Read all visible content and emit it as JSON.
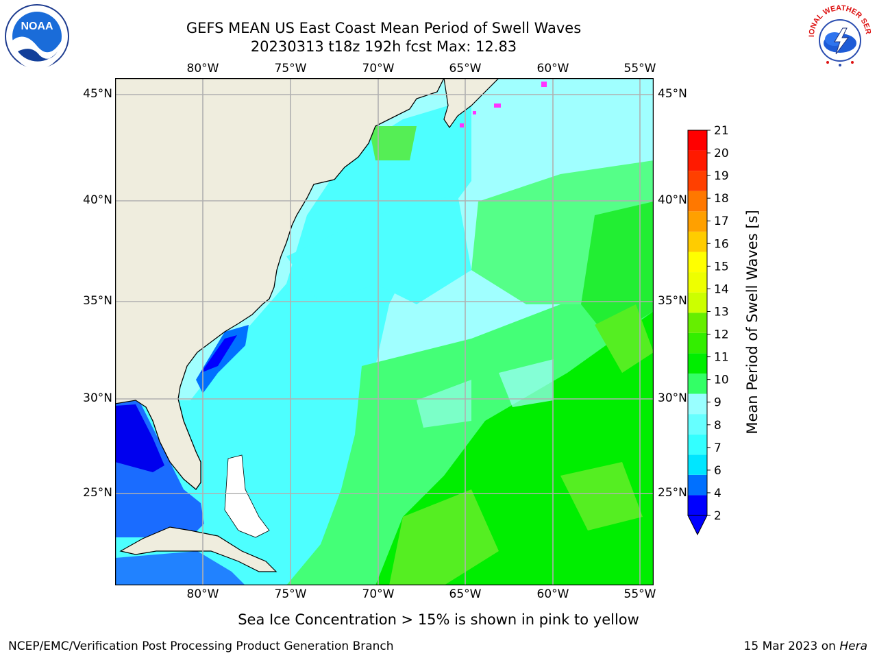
{
  "title": {
    "line1": "GEFS MEAN US East Coast Mean Period of Swell Waves",
    "line2": "20230313 t18z 192h fcst   Max: 12.83"
  },
  "map": {
    "lon_labels": [
      "80°W",
      "75°W",
      "70°W",
      "65°W",
      "60°W",
      "55°W"
    ],
    "lat_labels": [
      "45°N",
      "40°N",
      "35°N",
      "30°N",
      "25°N"
    ]
  },
  "colorbar": {
    "label": "Mean Period of Swell Waves [s]",
    "ticks": [
      "2",
      "4",
      "6",
      "7",
      "8",
      "9",
      "10",
      "11",
      "12",
      "13",
      "14",
      "15",
      "16",
      "17",
      "18",
      "19",
      "20",
      "21"
    ],
    "colors": [
      "#0000ff",
      "#0070ff",
      "#00e6ff",
      "#33ffff",
      "#66ffff",
      "#99ffff",
      "#33ff66",
      "#00ee00",
      "#33ee00",
      "#66ee00",
      "#ccff00",
      "#eeff00",
      "#ffff00",
      "#ffcc00",
      "#ffa000",
      "#ff7800",
      "#ff4000",
      "#ff1a00",
      "#ff0000"
    ]
  },
  "note": "Sea Ice Concentration > 15% is shown in pink to yellow",
  "footer": {
    "left": "NCEP/EMC/Verification Post Processing Product Generation Branch",
    "right_date": "15 Mar 2023 on",
    "right_host": "Hera"
  },
  "logos": {
    "noaa_text": "NOAA",
    "nws_text": "NATIONAL WEATHER SERVICE"
  },
  "palette": {
    "land": "#efedde",
    "deep_blue": "#0000ee",
    "mid_blue": "#1a6cff",
    "cyan": "#00ffff",
    "light_cyan": "#66ffff",
    "pale_cyan": "#a0ffff",
    "light_green": "#44ff77",
    "green": "#00ee00",
    "yellow_green": "#55ee22",
    "ice_pink": "#ff33ff"
  }
}
